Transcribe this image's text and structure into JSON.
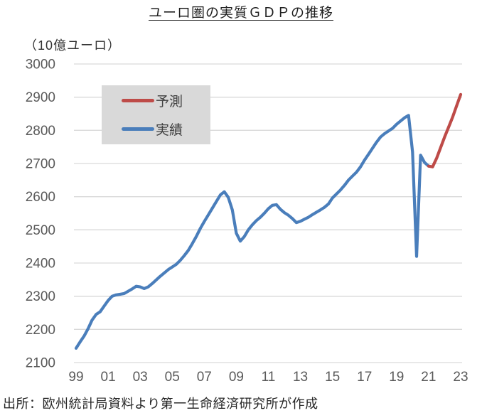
{
  "title": "ユーロ圏の実質ＧＤＰの推移",
  "unit_label": "（10億ユーロ）",
  "source_note": "出所：欧州統計局資料より第一生命経済研究所が作成",
  "colors": {
    "forecast_red": "#BE4B48",
    "actual_blue": "#4A7EBB",
    "grid": "#D9D9D9",
    "axis_text": "#595959",
    "legend_bg": "#D9D9D9"
  },
  "legend": {
    "items": [
      {
        "label": "予測",
        "series": "forecast"
      },
      {
        "label": "実績",
        "series": "actual"
      }
    ]
  },
  "chart_data": {
    "type": "line",
    "title": "ユーロ圏の実質ＧＤＰの推移",
    "ylabel": "（10億ユーロ）",
    "ylim": [
      2100,
      3000
    ],
    "ytick_step": 100,
    "yticks": [
      2100,
      2200,
      2300,
      2400,
      2500,
      2600,
      2700,
      2800,
      2900,
      3000
    ],
    "xtick_labels": [
      "99",
      "01",
      "03",
      "05",
      "07",
      "09",
      "11",
      "13",
      "15",
      "17",
      "19",
      "21",
      "23"
    ],
    "x_frequency": "quarterly",
    "grid": "horizontal-only",
    "legend_position": "upper-left-inside",
    "series": [
      {
        "name": "実績",
        "role": "actual",
        "color": "#4A7EBB",
        "start": "1999Q1",
        "values": [
          2143,
          2162,
          2180,
          2202,
          2228,
          2245,
          2253,
          2270,
          2287,
          2300,
          2304,
          2306,
          2308,
          2315,
          2322,
          2330,
          2328,
          2323,
          2328,
          2338,
          2349,
          2360,
          2370,
          2380,
          2388,
          2396,
          2408,
          2422,
          2438,
          2458,
          2480,
          2504,
          2525,
          2545,
          2565,
          2585,
          2605,
          2615,
          2598,
          2560,
          2490,
          2466,
          2480,
          2500,
          2515,
          2528,
          2538,
          2550,
          2564,
          2574,
          2576,
          2562,
          2552,
          2544,
          2534,
          2522,
          2526,
          2532,
          2538,
          2546,
          2553,
          2560,
          2568,
          2578,
          2596,
          2608,
          2620,
          2634,
          2650,
          2662,
          2674,
          2690,
          2710,
          2728,
          2746,
          2764,
          2780,
          2790,
          2798,
          2806,
          2818,
          2828,
          2838,
          2845,
          2735,
          2420,
          2725,
          2703,
          2692
        ]
      },
      {
        "name": "予測",
        "role": "forecast",
        "color": "#BE4B48",
        "start": "2021Q1",
        "values": [
          2692,
          2690,
          2716,
          2748,
          2780,
          2810,
          2840,
          2874,
          2908
        ]
      }
    ]
  }
}
